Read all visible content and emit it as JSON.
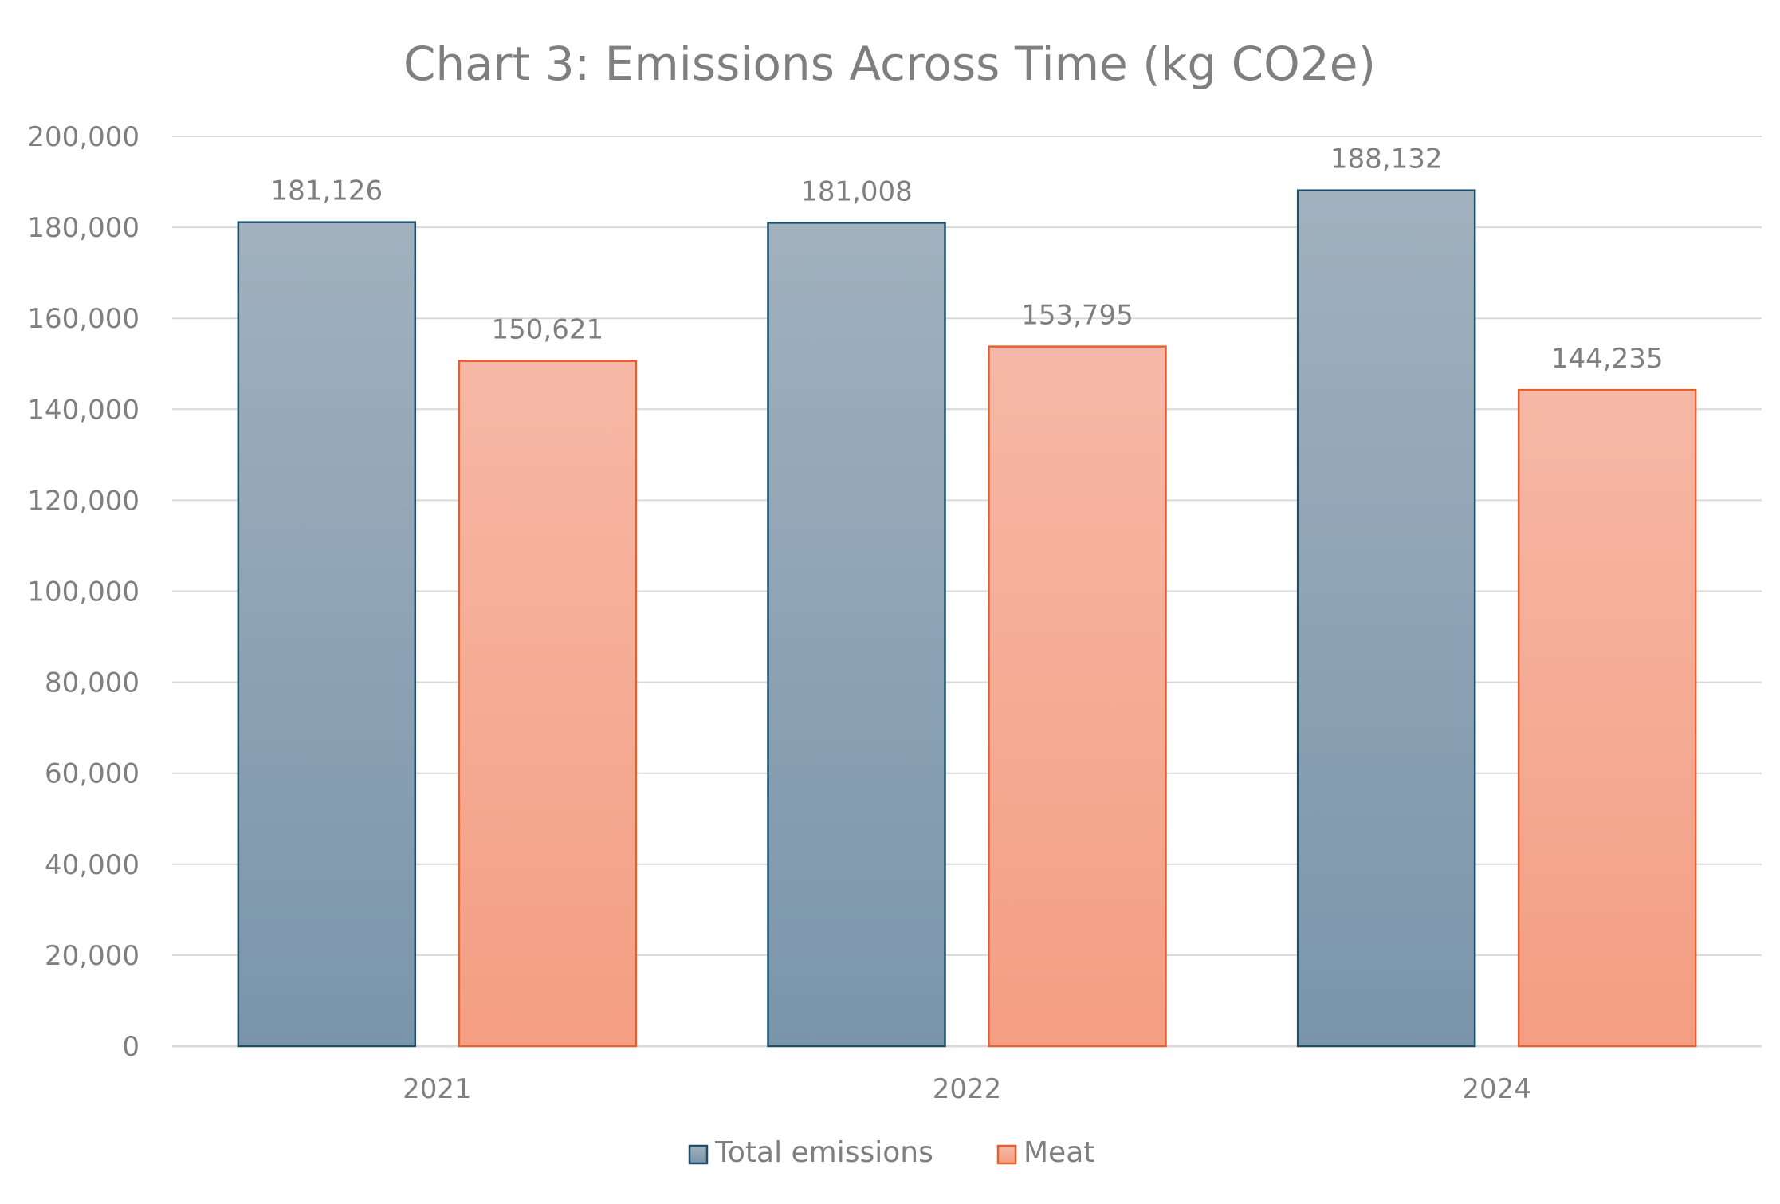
{
  "chart_data": {
    "type": "bar",
    "title": "Chart 3: Emissions Across Time (kg CO2e)",
    "xlabel": "",
    "ylabel": "",
    "categories": [
      "2021",
      "2022",
      "2024"
    ],
    "series": [
      {
        "name": "Total emissions",
        "values": [
          181126,
          181008,
          188132
        ],
        "labels": [
          "181,126",
          "181,008",
          "188,132"
        ],
        "color_top": "#a1b1be",
        "color_bottom": "#7a95ab",
        "border": "#1d4e6a"
      },
      {
        "name": "Meat",
        "values": [
          150621,
          153795,
          144235
        ],
        "labels": [
          "150,621",
          "153,795",
          "144,235"
        ],
        "color_top": "#f6b8a6",
        "color_bottom": "#f49e82",
        "border": "#e2612f"
      }
    ],
    "ylim": [
      0,
      200000
    ],
    "yticks": [
      0,
      20000,
      40000,
      60000,
      80000,
      100000,
      120000,
      140000,
      160000,
      180000,
      200000
    ],
    "ytick_labels": [
      "0",
      "20,000",
      "40,000",
      "60,000",
      "80,000",
      "100,000",
      "120,000",
      "140,000",
      "160,000",
      "180,000",
      "200,000"
    ],
    "grid": true,
    "grid_color": "#d9d9d9",
    "text_color": "#7f7f7f",
    "legend_position": "bottom"
  }
}
